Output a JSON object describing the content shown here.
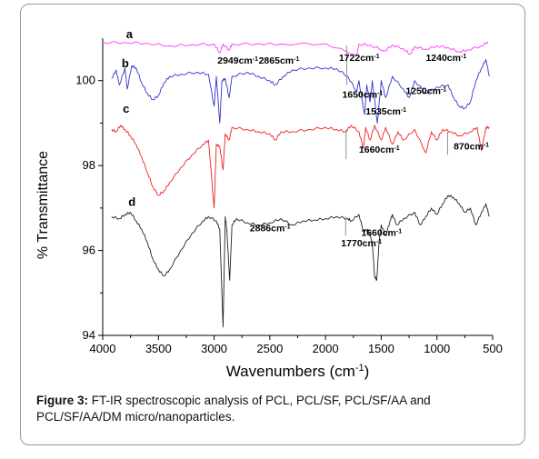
{
  "caption": {
    "label": "Figure 3:",
    "text": "FT-IR spectroscopic analysis of PCL, PCL/SF, PCL/SF/AA and PCL/SF/AA/DM micro/nanoparticles."
  },
  "chart_data": {
    "type": "line",
    "xlabel": "Wavenumbers (cm",
    "xlabel_sup": "-1",
    "xlabel_end": ")",
    "ylabel": "% Transmittance",
    "xlim": [
      4000,
      500
    ],
    "ylim": [
      94,
      101
    ],
    "x_ticks": [
      4000,
      3500,
      3000,
      2500,
      2000,
      1500,
      1000,
      500
    ],
    "y_ticks": [
      94,
      96,
      98,
      100
    ],
    "grid": false,
    "series": [
      {
        "name": "a",
        "color": "#ff33ff",
        "points": [
          [
            4000,
            100.9
          ],
          [
            3800,
            100.9
          ],
          [
            3600,
            100.88
          ],
          [
            3400,
            100.82
          ],
          [
            3200,
            100.85
          ],
          [
            3000,
            100.86
          ],
          [
            2949,
            100.65
          ],
          [
            2920,
            100.86
          ],
          [
            2865,
            100.72
          ],
          [
            2840,
            100.86
          ],
          [
            2600,
            100.87
          ],
          [
            2400,
            100.86
          ],
          [
            2000,
            100.87
          ],
          [
            1722,
            100.6
          ],
          [
            1700,
            100.86
          ],
          [
            1600,
            100.84
          ],
          [
            1470,
            100.7
          ],
          [
            1400,
            100.84
          ],
          [
            1300,
            100.75
          ],
          [
            1240,
            100.62
          ],
          [
            1200,
            100.8
          ],
          [
            1100,
            100.74
          ],
          [
            1000,
            100.82
          ],
          [
            900,
            100.78
          ],
          [
            800,
            100.68
          ],
          [
            730,
            100.72
          ],
          [
            600,
            100.82
          ],
          [
            540,
            100.92
          ]
        ]
      },
      {
        "name": "b",
        "color": "#3333cc",
        "points": [
          [
            3920,
            100.05
          ],
          [
            3880,
            100.25
          ],
          [
            3850,
            99.9
          ],
          [
            3800,
            100.3
          ],
          [
            3780,
            99.8
          ],
          [
            3740,
            100.35
          ],
          [
            3700,
            100.3
          ],
          [
            3650,
            99.95
          ],
          [
            3600,
            99.7
          ],
          [
            3550,
            99.55
          ],
          [
            3500,
            99.65
          ],
          [
            3450,
            99.95
          ],
          [
            3400,
            100.1
          ],
          [
            3300,
            100.15
          ],
          [
            3150,
            100.2
          ],
          [
            3050,
            100.15
          ],
          [
            3000,
            99.4
          ],
          [
            2980,
            100.1
          ],
          [
            2949,
            99.0
          ],
          [
            2930,
            100.0
          ],
          [
            2900,
            100.05
          ],
          [
            2865,
            99.6
          ],
          [
            2840,
            100.1
          ],
          [
            2700,
            100.2
          ],
          [
            2600,
            100.1
          ],
          [
            2500,
            100.0
          ],
          [
            2450,
            99.9
          ],
          [
            2380,
            100.1
          ],
          [
            2300,
            100.25
          ],
          [
            2150,
            100.3
          ],
          [
            2000,
            100.3
          ],
          [
            1900,
            100.28
          ],
          [
            1800,
            100.1
          ],
          [
            1722,
            99.75
          ],
          [
            1700,
            100.0
          ],
          [
            1650,
            99.2
          ],
          [
            1630,
            99.9
          ],
          [
            1600,
            99.5
          ],
          [
            1580,
            100.0
          ],
          [
            1535,
            99.0
          ],
          [
            1500,
            100.0
          ],
          [
            1460,
            99.6
          ],
          [
            1400,
            100.1
          ],
          [
            1300,
            99.8
          ],
          [
            1250,
            99.6
          ],
          [
            1200,
            100.0
          ],
          [
            1100,
            99.7
          ],
          [
            1000,
            99.85
          ],
          [
            900,
            99.9
          ],
          [
            850,
            99.6
          ],
          [
            800,
            99.4
          ],
          [
            750,
            99.35
          ],
          [
            700,
            99.5
          ],
          [
            650,
            100.0
          ],
          [
            600,
            100.3
          ],
          [
            560,
            100.5
          ],
          [
            530,
            100.1
          ]
        ]
      },
      {
        "name": "c",
        "color": "#ee2222",
        "points": [
          [
            3920,
            98.85
          ],
          [
            3880,
            98.8
          ],
          [
            3840,
            98.95
          ],
          [
            3800,
            98.85
          ],
          [
            3750,
            98.7
          ],
          [
            3700,
            98.5
          ],
          [
            3650,
            98.2
          ],
          [
            3600,
            97.85
          ],
          [
            3550,
            97.5
          ],
          [
            3500,
            97.3
          ],
          [
            3450,
            97.4
          ],
          [
            3400,
            97.6
          ],
          [
            3300,
            97.95
          ],
          [
            3200,
            98.25
          ],
          [
            3100,
            98.5
          ],
          [
            3050,
            98.6
          ],
          [
            3000,
            97.0
          ],
          [
            2980,
            98.5
          ],
          [
            2949,
            98.45
          ],
          [
            2920,
            97.9
          ],
          [
            2900,
            98.75
          ],
          [
            2865,
            98.6
          ],
          [
            2840,
            98.9
          ],
          [
            2700,
            98.85
          ],
          [
            2600,
            98.8
          ],
          [
            2500,
            98.75
          ],
          [
            2450,
            98.6
          ],
          [
            2400,
            98.8
          ],
          [
            2300,
            98.8
          ],
          [
            2150,
            98.85
          ],
          [
            2000,
            98.9
          ],
          [
            1900,
            98.85
          ],
          [
            1820,
            98.8
          ],
          [
            1770,
            98.95
          ],
          [
            1700,
            98.8
          ],
          [
            1660,
            98.4
          ],
          [
            1640,
            98.9
          ],
          [
            1600,
            98.6
          ],
          [
            1560,
            98.95
          ],
          [
            1500,
            98.6
          ],
          [
            1460,
            98.9
          ],
          [
            1400,
            98.5
          ],
          [
            1350,
            98.8
          ],
          [
            1300,
            98.6
          ],
          [
            1200,
            98.85
          ],
          [
            1100,
            98.3
          ],
          [
            1050,
            98.8
          ],
          [
            1000,
            98.6
          ],
          [
            950,
            98.85
          ],
          [
            870,
            98.8
          ],
          [
            800,
            98.7
          ],
          [
            700,
            98.8
          ],
          [
            640,
            98.9
          ],
          [
            600,
            98.35
          ],
          [
            560,
            98.9
          ],
          [
            530,
            98.9
          ]
        ]
      },
      {
        "name": "d",
        "color": "#222222",
        "points": [
          [
            3920,
            96.8
          ],
          [
            3850,
            96.75
          ],
          [
            3800,
            96.85
          ],
          [
            3750,
            96.9
          ],
          [
            3700,
            96.7
          ],
          [
            3650,
            96.5
          ],
          [
            3600,
            96.2
          ],
          [
            3550,
            95.8
          ],
          [
            3500,
            95.55
          ],
          [
            3450,
            95.4
          ],
          [
            3400,
            95.55
          ],
          [
            3300,
            96.0
          ],
          [
            3200,
            96.4
          ],
          [
            3100,
            96.7
          ],
          [
            3050,
            96.8
          ],
          [
            2980,
            96.7
          ],
          [
            2949,
            96.5
          ],
          [
            2920,
            94.2
          ],
          [
            2900,
            96.8
          ],
          [
            2886,
            96.5
          ],
          [
            2860,
            95.3
          ],
          [
            2840,
            96.6
          ],
          [
            2800,
            96.75
          ],
          [
            2700,
            96.65
          ],
          [
            2600,
            96.6
          ],
          [
            2500,
            96.65
          ],
          [
            2400,
            96.75
          ],
          [
            2300,
            96.6
          ],
          [
            2200,
            96.7
          ],
          [
            2100,
            96.72
          ],
          [
            2000,
            96.75
          ],
          [
            1900,
            96.8
          ],
          [
            1800,
            96.75
          ],
          [
            1770,
            96.7
          ],
          [
            1700,
            96.85
          ],
          [
            1660,
            96.45
          ],
          [
            1620,
            96.5
          ],
          [
            1580,
            96.2
          ],
          [
            1560,
            95.4
          ],
          [
            1540,
            95.3
          ],
          [
            1520,
            96.2
          ],
          [
            1500,
            96.6
          ],
          [
            1460,
            96.35
          ],
          [
            1420,
            96.7
          ],
          [
            1400,
            96.85
          ],
          [
            1360,
            96.6
          ],
          [
            1300,
            96.75
          ],
          [
            1200,
            96.9
          ],
          [
            1150,
            96.6
          ],
          [
            1100,
            96.8
          ],
          [
            1050,
            97.0
          ],
          [
            1000,
            96.85
          ],
          [
            950,
            97.1
          ],
          [
            900,
            97.3
          ],
          [
            850,
            97.25
          ],
          [
            800,
            97.1
          ],
          [
            750,
            96.9
          ],
          [
            700,
            97.0
          ],
          [
            650,
            96.6
          ],
          [
            600,
            96.9
          ],
          [
            560,
            97.1
          ],
          [
            530,
            96.8
          ]
        ]
      }
    ],
    "curve_labels": [
      {
        "text": "a",
        "x": 3790,
        "y": 101.0
      },
      {
        "text": "b",
        "x": 3830,
        "y": 100.32
      },
      {
        "text": "c",
        "x": 3820,
        "y": 99.25
      },
      {
        "text": "d",
        "x": 3770,
        "y": 97.05
      }
    ],
    "annotations": [
      {
        "text": "2949cm",
        "sup": "-1",
        "x": 2970,
        "y": 100.4
      },
      {
        "text": "2865cm",
        "sup": "-1",
        "x": 2600,
        "y": 100.4
      },
      {
        "text": "1722cm",
        "sup": "-1",
        "x": 1880,
        "y": 100.46
      },
      {
        "text": "1240cm",
        "sup": "-1",
        "x": 1100,
        "y": 100.46
      },
      {
        "text": "1650cm",
        "sup": "-1",
        "x": 1850,
        "y": 99.6
      },
      {
        "text": "1250cm",
        "sup": "-1",
        "x": 1280,
        "y": 99.68
      },
      {
        "text": "1535cm",
        "sup": "-1",
        "x": 1640,
        "y": 99.2
      },
      {
        "text": "1660cm",
        "sup": "-1",
        "x": 1700,
        "y": 98.3
      },
      {
        "text": "870cm",
        "sup": "-1",
        "x": 850,
        "y": 98.38
      },
      {
        "text": "2886cm",
        "sup": "-1",
        "x": 2680,
        "y": 96.45
      },
      {
        "text": "1660cm",
        "sup": "-1",
        "x": 1680,
        "y": 96.34
      },
      {
        "text": "1770cm",
        "sup": "-1",
        "x": 1860,
        "y": 96.1
      }
    ],
    "marker_lines": [
      {
        "x": 1810,
        "y1": 100.82,
        "y2": 99.9
      },
      {
        "x": 1815,
        "y1": 98.85,
        "y2": 98.15
      },
      {
        "x": 905,
        "y1": 98.8,
        "y2": 98.25
      },
      {
        "x": 1820,
        "y1": 96.8,
        "y2": 96.35
      }
    ]
  }
}
